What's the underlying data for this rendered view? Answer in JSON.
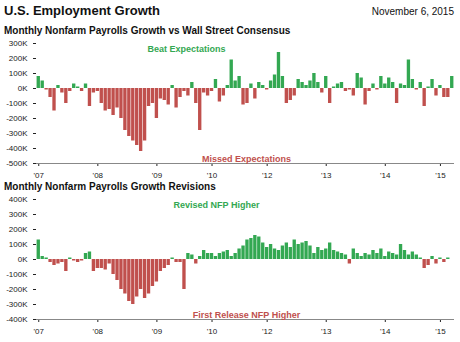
{
  "header": {
    "title": "U.S. Employment Growth",
    "date": "November 6, 2015"
  },
  "chart_data": [
    {
      "type": "bar",
      "title": "Monthly Nonfarm Payrolls Growth vs Wall Street Consensus",
      "categories": [
        "'07",
        null,
        null,
        null,
        null,
        null,
        null,
        null,
        null,
        null,
        null,
        null,
        null,
        null,
        null,
        "'08",
        null,
        null,
        null,
        null,
        null,
        null,
        null,
        null,
        null,
        null,
        null,
        null,
        null,
        null,
        "'09",
        null,
        null,
        null,
        null,
        null,
        null,
        null,
        null,
        null,
        null,
        null,
        null,
        null,
        "'10",
        null,
        null,
        null,
        null,
        null,
        null,
        null,
        null,
        null,
        null,
        null,
        null,
        null,
        "'12",
        null,
        null,
        null,
        null,
        null,
        null,
        null,
        null,
        null,
        null,
        null,
        null,
        null,
        null,
        "'13",
        null,
        null,
        null,
        null,
        null,
        null,
        null,
        null,
        null,
        null,
        null,
        null,
        null,
        null,
        "'14",
        null,
        null,
        null,
        null,
        null,
        null,
        null,
        null,
        null,
        null,
        null,
        null,
        null,
        "'15",
        null,
        null,
        null
      ],
      "series": [
        {
          "name": "Beat Expectations",
          "color": "#33a852",
          "values": [
            80,
            50,
            null,
            null,
            null,
            20,
            null,
            null,
            null,
            30,
            10,
            null,
            30,
            null,
            null,
            null,
            null,
            null,
            null,
            null,
            null,
            null,
            null,
            null,
            null,
            null,
            null,
            null,
            null,
            null,
            null,
            null,
            null,
            null,
            20,
            null,
            null,
            null,
            null,
            40,
            null,
            null,
            null,
            null,
            null,
            60,
            null,
            null,
            20,
            190,
            50,
            80,
            null,
            null,
            30,
            null,
            40,
            20,
            null,
            50,
            90,
            240,
            80,
            null,
            null,
            null,
            60,
            40,
            20,
            50,
            100,
            40,
            null,
            80,
            null,
            10,
            30,
            40,
            null,
            null,
            null,
            100,
            70,
            null,
            null,
            30,
            null,
            80,
            30,
            70,
            40,
            null,
            30,
            20,
            190,
            60,
            null,
            40,
            null,
            10,
            60,
            null,
            20,
            null,
            null,
            80
          ]
        },
        {
          "name": "Missed Expectations",
          "color": "#c0504d",
          "values": [
            null,
            null,
            -10,
            -60,
            -150,
            null,
            -30,
            -100,
            -20,
            null,
            null,
            -20,
            null,
            -120,
            -30,
            -20,
            -100,
            -150,
            -140,
            -180,
            -130,
            -200,
            -280,
            -320,
            -350,
            -380,
            -420,
            -350,
            -120,
            -100,
            -200,
            -70,
            -80,
            -110,
            null,
            -130,
            -60,
            -20,
            -50,
            null,
            -100,
            -280,
            -30,
            -50,
            -20,
            null,
            -90,
            -50,
            null,
            null,
            null,
            null,
            -110,
            -100,
            null,
            -70,
            null,
            null,
            -10,
            null,
            null,
            null,
            null,
            -100,
            -80,
            -50,
            null,
            null,
            null,
            null,
            null,
            null,
            -30,
            null,
            -100,
            null,
            null,
            null,
            -20,
            -10,
            -50,
            null,
            null,
            -110,
            -20,
            null,
            -10,
            null,
            null,
            null,
            null,
            -100,
            null,
            null,
            null,
            null,
            -10,
            null,
            -120,
            null,
            null,
            -50,
            null,
            -60,
            -60,
            null
          ]
        }
      ],
      "ylim": [
        -500,
        300
      ],
      "yticks": [
        {
          "value": 300,
          "label": "300K"
        },
        {
          "value": 200,
          "label": "200K"
        },
        {
          "value": 100,
          "label": "100K"
        },
        {
          "value": 0,
          "label": "0K"
        },
        {
          "value": -100,
          "label": "-100K"
        },
        {
          "value": -200,
          "label": "-200K"
        },
        {
          "value": -300,
          "label": "-300K"
        },
        {
          "value": -400,
          "label": "-400K"
        },
        {
          "value": -500,
          "label": "-500K"
        }
      ],
      "grid": false
    },
    {
      "type": "bar",
      "title": "Monthly Nonfarm Payrolls Growth Revisions",
      "categories": [
        "'07",
        null,
        null,
        null,
        null,
        null,
        null,
        null,
        null,
        null,
        null,
        null,
        null,
        null,
        null,
        "'08",
        null,
        null,
        null,
        null,
        null,
        null,
        null,
        null,
        null,
        null,
        null,
        null,
        null,
        null,
        "'09",
        null,
        null,
        null,
        null,
        null,
        null,
        null,
        null,
        null,
        null,
        null,
        null,
        null,
        "'10",
        null,
        null,
        null,
        null,
        null,
        null,
        null,
        null,
        null,
        null,
        null,
        null,
        null,
        "'12",
        null,
        null,
        null,
        null,
        null,
        null,
        null,
        null,
        null,
        null,
        null,
        null,
        null,
        null,
        "'13",
        null,
        null,
        null,
        null,
        null,
        null,
        null,
        null,
        null,
        null,
        null,
        null,
        null,
        null,
        "'14",
        null,
        null,
        null,
        null,
        null,
        null,
        null,
        null,
        null,
        null,
        null,
        null,
        null,
        "'15",
        null,
        null,
        null
      ],
      "series": [
        {
          "name": "Revised NFP Higher",
          "color": "#33a852",
          "values": [
            130,
            20,
            10,
            null,
            null,
            null,
            null,
            null,
            10,
            null,
            null,
            null,
            40,
            50,
            null,
            null,
            null,
            null,
            null,
            null,
            null,
            null,
            null,
            null,
            null,
            null,
            null,
            null,
            null,
            null,
            null,
            null,
            null,
            null,
            10,
            null,
            null,
            null,
            40,
            30,
            null,
            20,
            60,
            40,
            40,
            20,
            40,
            50,
            60,
            20,
            40,
            70,
            90,
            130,
            140,
            160,
            150,
            110,
            80,
            100,
            70,
            60,
            90,
            110,
            80,
            130,
            100,
            110,
            120,
            90,
            40,
            80,
            60,
            70,
            110,
            60,
            50,
            40,
            30,
            null,
            70,
            40,
            20,
            40,
            30,
            60,
            40,
            70,
            20,
            50,
            40,
            30,
            100,
            60,
            30,
            50,
            30,
            10,
            null,
            null,
            20,
            null,
            10,
            null,
            10,
            null
          ]
        },
        {
          "name": "First Release NFP Higher",
          "color": "#c0504d",
          "values": [
            null,
            null,
            null,
            -20,
            -40,
            -30,
            -20,
            -80,
            null,
            -10,
            -20,
            -10,
            null,
            null,
            -80,
            -60,
            -60,
            -70,
            -30,
            -100,
            -140,
            -200,
            -230,
            -280,
            -300,
            -250,
            -200,
            -260,
            -230,
            -180,
            -150,
            -80,
            -60,
            -40,
            null,
            -20,
            -20,
            -200,
            null,
            null,
            -30,
            null,
            null,
            null,
            null,
            null,
            null,
            null,
            null,
            null,
            null,
            null,
            null,
            null,
            null,
            null,
            null,
            null,
            null,
            null,
            null,
            null,
            null,
            null,
            null,
            null,
            null,
            null,
            null,
            null,
            null,
            null,
            null,
            null,
            null,
            null,
            null,
            null,
            null,
            -30,
            null,
            null,
            null,
            null,
            null,
            null,
            null,
            null,
            null,
            null,
            null,
            null,
            null,
            null,
            null,
            null,
            null,
            null,
            -60,
            -40,
            null,
            -30,
            null,
            -20,
            null,
            null
          ]
        }
      ],
      "ylim": [
        -400,
        400
      ],
      "yticks": [
        {
          "value": 400,
          "label": "400K"
        },
        {
          "value": 300,
          "label": "300K"
        },
        {
          "value": 200,
          "label": "200K"
        },
        {
          "value": 100,
          "label": "100K"
        },
        {
          "value": 0,
          "label": "0K"
        },
        {
          "value": -100,
          "label": "-100K"
        },
        {
          "value": -200,
          "label": "-200K"
        },
        {
          "value": -300,
          "label": "-300K"
        },
        {
          "value": -400,
          "label": "-400K"
        }
      ],
      "grid": false
    }
  ]
}
